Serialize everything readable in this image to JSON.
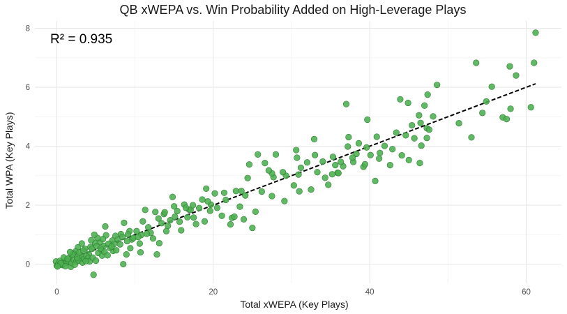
{
  "chart_data": {
    "type": "scatter",
    "title": "QB xWEPA vs. Win Probability Added on High-Leverage Plays",
    "xlabel": "Total xWEPA (Key Plays)",
    "ylabel": "Total WPA (Key Plays)",
    "xlim": [
      -2.8,
      64.5
    ],
    "ylim": [
      -0.65,
      8.25
    ],
    "x_ticks": [
      0,
      20,
      40,
      60
    ],
    "y_ticks": [
      0,
      2,
      4,
      6,
      8
    ],
    "grid": true,
    "annotation": "R² = 0.935",
    "colors": {
      "point_fill": "#4caf50",
      "point_stroke": "#2e7d32",
      "trend": "#000000"
    },
    "trendline": {
      "x": [
        0,
        61.2
      ],
      "y": [
        0.0,
        6.12
      ],
      "style": "dashed"
    },
    "points": [
      [
        61.2,
        7.85
      ],
      [
        61.0,
        6.83
      ],
      [
        58.7,
        6.4
      ],
      [
        57.9,
        6.71
      ],
      [
        60.6,
        5.32
      ],
      [
        58.0,
        5.27
      ],
      [
        57.0,
        4.98
      ],
      [
        57.5,
        4.92
      ],
      [
        55.6,
        6.02
      ],
      [
        54.9,
        5.52
      ],
      [
        54.4,
        5.13
      ],
      [
        53.6,
        6.83
      ],
      [
        53.0,
        4.3
      ],
      [
        51.4,
        4.78
      ],
      [
        48.6,
        6.08
      ],
      [
        48.1,
        5.01
      ],
      [
        47.3,
        4.61
      ],
      [
        47.4,
        5.75
      ],
      [
        47.6,
        4.56
      ],
      [
        47.3,
        4.28
      ],
      [
        47.0,
        5.38
      ],
      [
        46.5,
        4.79
      ],
      [
        46.6,
        4.02
      ],
      [
        46.4,
        3.43
      ],
      [
        46.3,
        5.05
      ],
      [
        45.7,
        4.27
      ],
      [
        45.4,
        4.71
      ],
      [
        44.9,
        5.47
      ],
      [
        44.6,
        4.37
      ],
      [
        43.9,
        5.59
      ],
      [
        43.4,
        4.46
      ],
      [
        42.9,
        3.9
      ],
      [
        42.6,
        3.36
      ],
      [
        41.9,
        4.01
      ],
      [
        41.3,
        3.77
      ],
      [
        40.9,
        4.32
      ],
      [
        40.7,
        2.82
      ],
      [
        40.1,
        3.7
      ],
      [
        39.7,
        4.9
      ],
      [
        39.6,
        3.96
      ],
      [
        39.2,
        3.3
      ],
      [
        38.6,
        4.1
      ],
      [
        38.3,
        3.74
      ],
      [
        37.9,
        3.47
      ],
      [
        37.3,
        4.31
      ],
      [
        37.2,
        3.99
      ],
      [
        37.0,
        5.43
      ],
      [
        36.6,
        3.32
      ],
      [
        36.3,
        3.47
      ],
      [
        35.9,
        3.1
      ],
      [
        35.6,
        3.36
      ],
      [
        35.3,
        3.64
      ],
      [
        35.2,
        3.05
      ],
      [
        34.3,
        2.93
      ],
      [
        34.0,
        3.48
      ],
      [
        33.3,
        3.12
      ],
      [
        33.0,
        3.7
      ],
      [
        32.9,
        4.24
      ],
      [
        32.0,
        3.45
      ],
      [
        31.2,
        3.27
      ],
      [
        30.9,
        3.04
      ],
      [
        30.6,
        3.87
      ],
      [
        30.7,
        3.61
      ],
      [
        30.3,
        2.67
      ],
      [
        29.3,
        3.0
      ],
      [
        28.9,
        3.12
      ],
      [
        28.0,
        3.72
      ],
      [
        27.7,
        2.95
      ],
      [
        27.5,
        3.08
      ],
      [
        27.1,
        3.18
      ],
      [
        26.6,
        3.43
      ],
      [
        26.2,
        2.46
      ],
      [
        25.7,
        3.72
      ],
      [
        25.4,
        1.78
      ],
      [
        24.6,
        3.38
      ],
      [
        24.4,
        2.92
      ],
      [
        24.1,
        2.33
      ],
      [
        23.6,
        2.48
      ],
      [
        23.4,
        1.95
      ],
      [
        22.9,
        2.48
      ],
      [
        22.4,
        1.57
      ],
      [
        22.2,
        1.35
      ],
      [
        21.6,
        2.18
      ],
      [
        21.4,
        2.42
      ],
      [
        21.1,
        1.64
      ],
      [
        20.5,
        1.91
      ],
      [
        19.7,
        2.02
      ],
      [
        19.3,
        2.13
      ],
      [
        19.1,
        2.56
      ],
      [
        18.6,
        2.19
      ],
      [
        18.2,
        1.9
      ],
      [
        17.8,
        1.36
      ],
      [
        17.5,
        1.58
      ],
      [
        16.9,
        1.85
      ],
      [
        16.7,
        1.59
      ],
      [
        16.3,
        2.02
      ],
      [
        15.7,
        1.44
      ],
      [
        15.4,
        1.8
      ],
      [
        15.1,
        1.61
      ],
      [
        14.8,
        2.28
      ],
      [
        14.2,
        1.3
      ],
      [
        13.7,
        1.7
      ],
      [
        13.4,
        1.39
      ],
      [
        13.0,
        1.55
      ],
      [
        12.6,
        1.77
      ],
      [
        12.0,
        1.06
      ],
      [
        11.7,
        1.25
      ],
      [
        11.5,
        1.03
      ],
      [
        11.0,
        1.45
      ],
      [
        10.8,
        0.99
      ],
      [
        10.6,
        0.7
      ],
      [
        9.6,
        0.84
      ],
      [
        9.0,
        0.78
      ],
      [
        9.3,
        1.12
      ],
      [
        8.6,
        1.4
      ],
      [
        8.2,
        1.02
      ],
      [
        7.5,
        0.96
      ],
      [
        7.1,
        0.8
      ],
      [
        6.3,
        0.98
      ],
      [
        6.0,
        0.62
      ],
      [
        5.7,
        0.46
      ],
      [
        5.5,
        0.75
      ],
      [
        5.2,
        0.89
      ],
      [
        4.9,
        0.72
      ],
      [
        4.4,
        0.81
      ],
      [
        4.1,
        0.34
      ],
      [
        3.6,
        0.52
      ],
      [
        3.2,
        0.7
      ],
      [
        3.0,
        0.18
      ],
      [
        2.7,
        0.57
      ],
      [
        2.4,
        0.43
      ],
      [
        2.1,
        0.36
      ],
      [
        1.6,
        0.21
      ],
      [
        1.2,
        0.13
      ],
      [
        0.8,
        0.05
      ],
      [
        0.3,
        0.01
      ],
      [
        -0.1,
        0.09
      ],
      [
        8.5,
        0.0
      ],
      [
        10.7,
        0.4
      ],
      [
        8.9,
        0.33
      ],
      [
        6.2,
        1.28
      ],
      [
        7.2,
        0.45
      ],
      [
        4.8,
        1.0
      ],
      [
        1.8,
        -0.09
      ],
      [
        0.6,
        -0.02
      ],
      [
        0.0,
        -0.05
      ],
      [
        0.2,
        0.0
      ],
      [
        0.4,
        0.11
      ],
      [
        0.7,
        -0.03
      ],
      [
        1.0,
        0.02
      ],
      [
        1.3,
        0.06
      ],
      [
        1.5,
        0.1
      ],
      [
        1.9,
        0.04
      ],
      [
        2.2,
        0.14
      ],
      [
        2.5,
        0.08
      ],
      [
        2.8,
        0.12
      ],
      [
        3.1,
        0.3
      ],
      [
        3.3,
        0.05
      ],
      [
        3.5,
        0.18
      ],
      [
        3.8,
        0.27
      ],
      [
        4.0,
        0.21
      ],
      [
        4.2,
        0.09
      ],
      [
        4.6,
        0.22
      ],
      [
        4.7,
        -0.36
      ],
      [
        5.0,
        0.12
      ],
      [
        5.3,
        0.38
      ],
      [
        5.8,
        0.29
      ],
      [
        6.1,
        0.42
      ],
      [
        6.5,
        0.3
      ],
      [
        6.8,
        0.55
      ],
      [
        7.3,
        0.68
      ],
      [
        7.8,
        0.83
      ],
      [
        8.1,
        0.67
      ],
      [
        8.4,
        0.92
      ],
      [
        9.1,
        1.01
      ],
      [
        9.4,
        0.54
      ],
      [
        9.8,
        0.89
      ],
      [
        10.2,
        1.12
      ],
      [
        10.4,
        0.92
      ],
      [
        12.3,
        0.87
      ],
      [
        12.8,
        0.33
      ],
      [
        13.1,
        0.71
      ],
      [
        14.0,
        1.12
      ],
      [
        14.5,
        1.49
      ],
      [
        15.9,
        1.15
      ],
      [
        17.1,
        1.84
      ],
      [
        18.9,
        1.45
      ],
      [
        20.2,
        2.4
      ],
      [
        22.7,
        1.61
      ],
      [
        23.9,
        1.52
      ],
      [
        25.0,
        1.23
      ],
      [
        27.5,
        2.31
      ],
      [
        29.1,
        2.14
      ],
      [
        31.0,
        2.47
      ],
      [
        32.5,
        2.53
      ],
      [
        34.7,
        2.69
      ],
      [
        36.0,
        3.09
      ],
      [
        37.8,
        3.61
      ],
      [
        39.4,
        3.39
      ],
      [
        41.2,
        3.58
      ],
      [
        44.1,
        3.69
      ],
      [
        45.0,
        3.53
      ],
      [
        0.9,
        0.23
      ],
      [
        1.1,
        -0.07
      ],
      [
        1.4,
        0.18
      ],
      [
        2.0,
        0.33
      ],
      [
        2.6,
        0.22
      ],
      [
        2.9,
        0.4
      ],
      [
        3.4,
        0.46
      ],
      [
        3.7,
        0.1
      ],
      [
        4.3,
        0.58
      ],
      [
        4.5,
        0.52
      ],
      [
        5.1,
        0.61
      ],
      [
        5.6,
        0.53
      ],
      [
        5.9,
        0.85
      ],
      [
        6.6,
        0.69
      ],
      [
        7.0,
        0.6
      ],
      [
        7.6,
        0.47
      ],
      [
        1.7,
        0.41
      ],
      [
        2.3,
        -0.02
      ],
      [
        0.5,
        0.03
      ],
      [
        0.1,
        -0.08
      ],
      [
        11.3,
        1.84
      ],
      [
        13.8,
        1.76
      ],
      [
        15.0,
        1.96
      ],
      [
        16.5,
        1.91
      ],
      [
        17.4,
        2.0
      ],
      [
        19.6,
        1.81
      ]
    ]
  }
}
